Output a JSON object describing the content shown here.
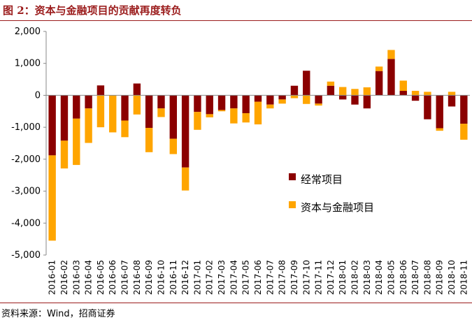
{
  "title": "图 2：资本与金融项目的贡献再度转负",
  "source": "资料来源：Wind，招商证券",
  "colors": {
    "current_account": "#8b0000",
    "capital_financial": "#ffa500",
    "accent": "#9b1c1c"
  },
  "chart_data": {
    "type": "bar",
    "stacked": true,
    "title": "",
    "xlabel": "",
    "ylabel": "",
    "ylim": [
      -5000,
      2000
    ],
    "yticks": [
      2000,
      1000,
      0,
      -1000,
      -2000,
      -3000,
      -4000,
      -5000
    ],
    "ytick_labels": [
      "2,000",
      "1,000",
      "0",
      "-1,000",
      "-2,000",
      "-3,000",
      "-4,000",
      "-5,000"
    ],
    "grid": false,
    "legend_position": "center-right",
    "categories": [
      "2016-01",
      "2016-02",
      "2016-03",
      "2016-04",
      "2016-05",
      "2016-06",
      "2016-07",
      "2016-08",
      "2016-09",
      "2016-10",
      "2016-11",
      "2016-12",
      "2017-01",
      "2017-02",
      "2017-03",
      "2017-04",
      "2017-05",
      "2017-06",
      "2017-07",
      "2017-08",
      "2017-09",
      "2017-10",
      "2017-11",
      "2017-12",
      "2018-01",
      "2018-02",
      "2018-03",
      "2018-04",
      "2018-05",
      "2018-06",
      "2018-07",
      "2018-08",
      "2018-09",
      "2018-10",
      "2018-11"
    ],
    "series": [
      {
        "name": "经常项目",
        "values": [
          -1880,
          -1420,
          -730,
          -410,
          310,
          0,
          -790,
          370,
          -1020,
          -410,
          -1360,
          -2260,
          -520,
          -590,
          -460,
          -410,
          -560,
          -200,
          -290,
          -130,
          300,
          770,
          -260,
          300,
          -130,
          -290,
          -410,
          760,
          1140,
          140,
          -170,
          -750,
          -1030,
          -350,
          -890
        ]
      },
      {
        "name": "资本与金融项目",
        "values": [
          -2670,
          -870,
          -1450,
          -1080,
          -1000,
          -1160,
          -520,
          -600,
          -760,
          -270,
          -480,
          -720,
          -560,
          -100,
          -40,
          -470,
          -290,
          -710,
          -120,
          -130,
          -90,
          -270,
          -60,
          130,
          260,
          200,
          250,
          140,
          280,
          320,
          140,
          110,
          -80,
          110,
          -500
        ]
      }
    ]
  }
}
